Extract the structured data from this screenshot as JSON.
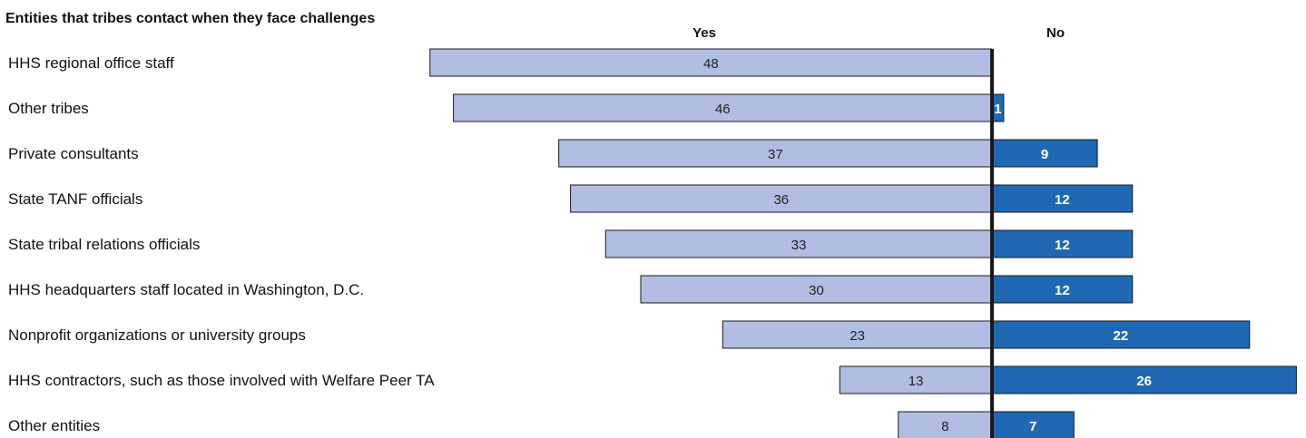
{
  "chart_data": {
    "type": "bar",
    "title": "Entities that tribes contact when they face challenges",
    "categories": [
      "HHS regional office staff",
      "Other tribes",
      "Private consultants",
      "State TANF officials",
      "State tribal relations officials",
      "HHS headquarters staff located in Washington, D.C.",
      "Nonprofit organizations or university groups",
      "HHS contractors, such as those involved with Welfare Peer TA",
      "Other entities"
    ],
    "series": [
      {
        "name": "Yes",
        "values": [
          48,
          46,
          37,
          36,
          33,
          30,
          23,
          13,
          8
        ],
        "color": "#b1bde3"
      },
      {
        "name": "No",
        "values": [
          0,
          1,
          9,
          12,
          12,
          12,
          22,
          26,
          7
        ],
        "color": "#1f69b4"
      }
    ],
    "value_labels": {
      "yes": [
        "48",
        "46",
        "37",
        "36",
        "33",
        "30",
        "23",
        "13",
        "8"
      ],
      "no": [
        "",
        "1",
        "9",
        "12",
        "12",
        "12",
        "22",
        "26",
        "7"
      ]
    },
    "orientation": "horizontal-diverging"
  }
}
